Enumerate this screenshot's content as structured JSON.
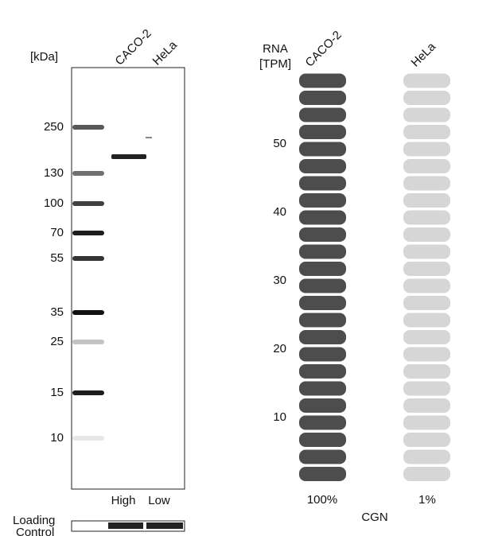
{
  "blot": {
    "unit_label": "[kDa]",
    "lanes": [
      "CACO-2",
      "HeLa"
    ],
    "markers": [
      "250",
      "130",
      "100",
      "70",
      "55",
      "35",
      "25",
      "15",
      "10"
    ],
    "expression": [
      "High",
      "Low"
    ],
    "loading_control": [
      "Loading",
      "Control"
    ]
  },
  "rna": {
    "header": [
      "RNA",
      "[TPM]"
    ],
    "lanes": [
      "CACO-2",
      "HeLa"
    ],
    "ticks": [
      "10",
      "20",
      "30",
      "40",
      "50"
    ],
    "percentages": [
      "100%",
      "1%"
    ],
    "gene": "CGN"
  }
}
